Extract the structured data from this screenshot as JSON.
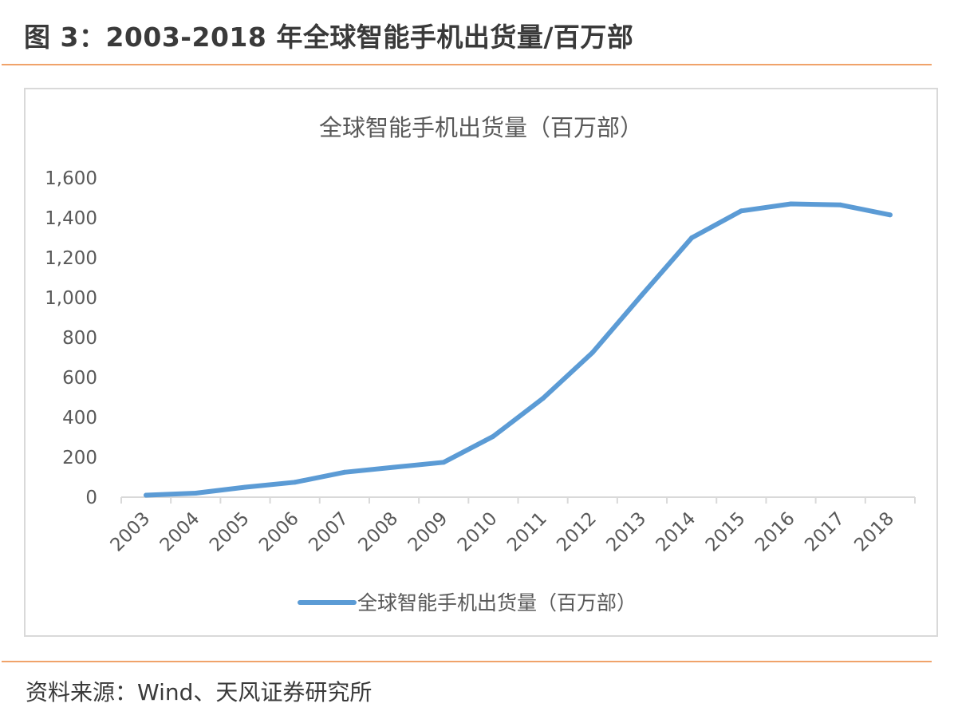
{
  "figure": {
    "title": "图 3：2003-2018 年全球智能手机出货量/百万部",
    "source": "资料来源：Wind、天风证券研究所"
  },
  "colors": {
    "accent_rule": "#f0a36a",
    "series_line": "#5b9bd5",
    "frame": "#d9d9d9"
  },
  "chart_data": {
    "type": "line",
    "title": "全球智能手机出货量（百万部）",
    "categories": [
      "2003",
      "2004",
      "2005",
      "2006",
      "2007",
      "2008",
      "2009",
      "2010",
      "2011",
      "2012",
      "2013",
      "2014",
      "2015",
      "2016",
      "2017",
      "2018"
    ],
    "series": [
      {
        "name": "全球智能手机出货量（百万部）",
        "values": [
          10,
          20,
          50,
          75,
          125,
          150,
          175,
          305,
          495,
          725,
          1015,
          1300,
          1435,
          1470,
          1465,
          1415
        ]
      }
    ],
    "ylim": [
      0,
      1600
    ],
    "yticks": [
      0,
      200,
      400,
      600,
      800,
      1000,
      1200,
      1400,
      1600
    ],
    "ytick_labels": [
      "0",
      "200",
      "400",
      "600",
      "800",
      "1,000",
      "1,200",
      "1,400",
      "1,600"
    ],
    "xlabel": "",
    "ylabel": "",
    "grid": false,
    "legend_position": "bottom"
  }
}
